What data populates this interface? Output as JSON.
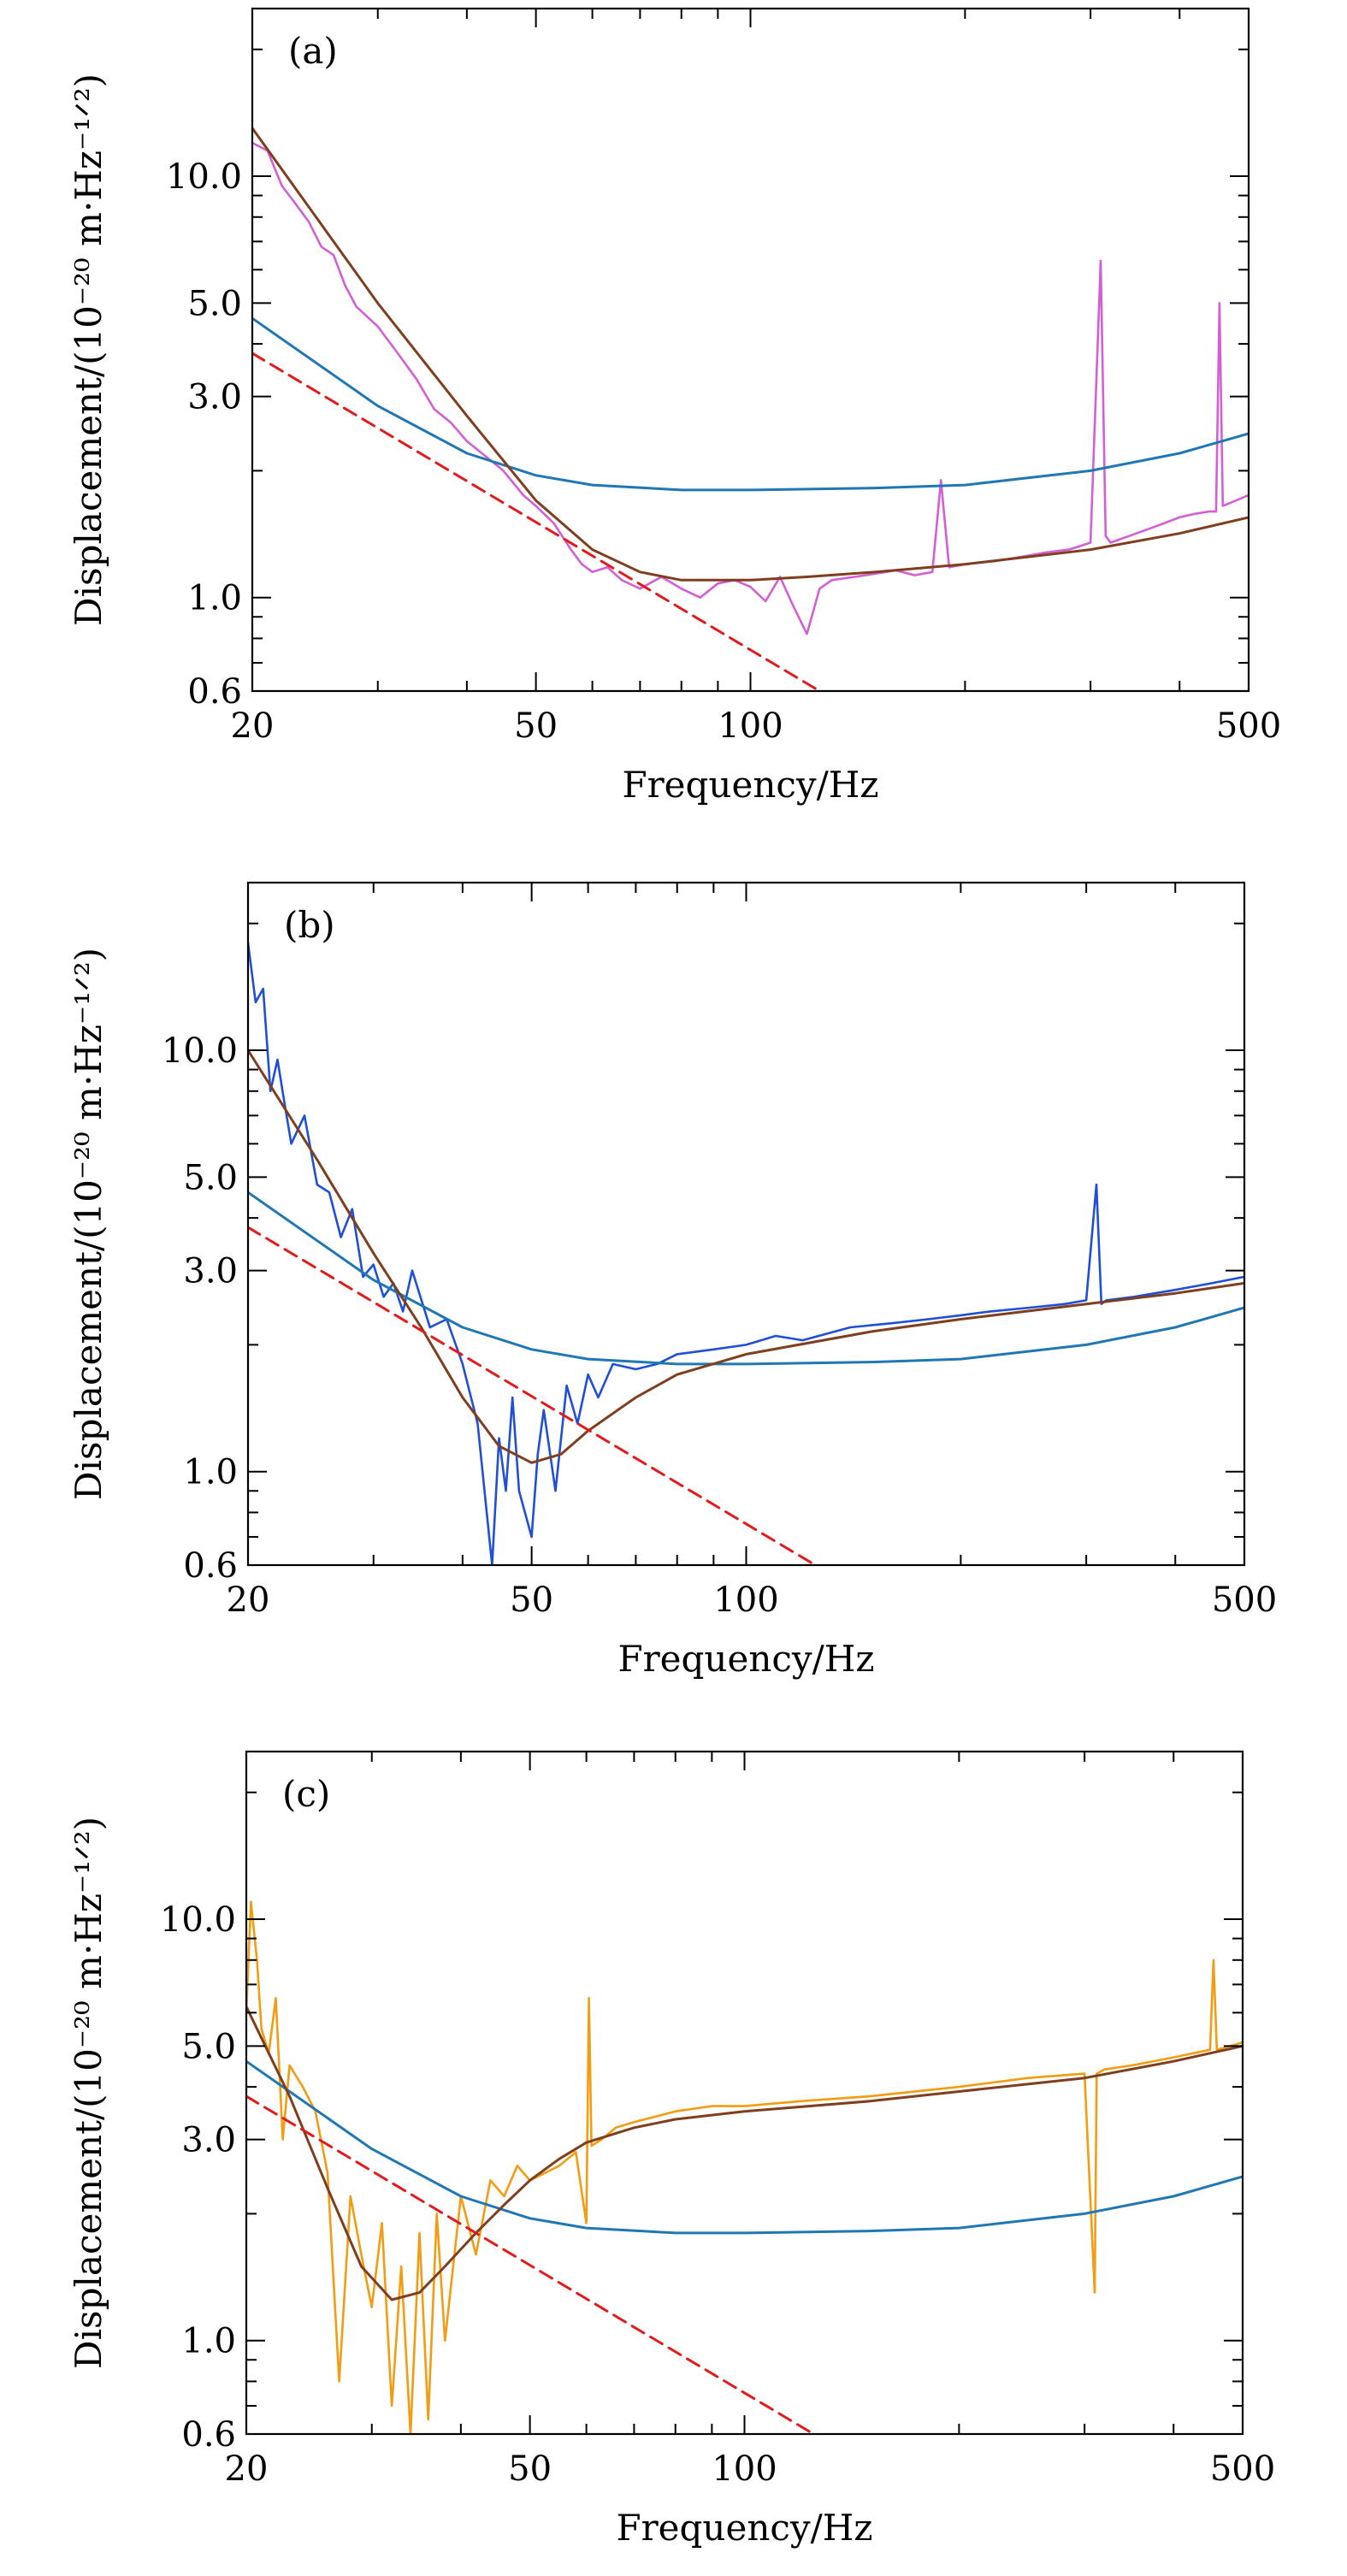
{
  "chart_data": [
    {
      "type": "line",
      "panel_label": "(a)",
      "xlabel": "Frequency/Hz",
      "ylabel": "Displacement/(10⁻²⁰ m·Hz⁻¹ᐟ²)",
      "xscale": "log",
      "yscale": "log",
      "xlim": [
        20,
        500
      ],
      "ylim": [
        0.6,
        25
      ],
      "x_ticks": [
        20,
        50,
        100,
        500
      ],
      "x_tick_labels": [
        "20",
        "50",
        "100",
        "500"
      ],
      "y_ticks": [
        0.6,
        1.0,
        3.0,
        5.0,
        10.0
      ],
      "y_tick_labels": [
        "0.6",
        "1.0",
        "3.0",
        "5.0",
        "10.0"
      ],
      "grid": false,
      "series": [
        {
          "role": "measured",
          "color": "#d45fd4",
          "x": [
            20,
            21,
            22,
            23,
            24,
            25,
            26,
            27,
            28,
            30,
            32,
            34,
            36,
            38,
            40,
            42,
            45,
            48,
            50,
            53,
            56,
            58,
            60,
            63,
            66,
            70,
            75,
            80,
            85,
            90,
            95,
            100,
            105,
            110,
            115,
            120,
            125,
            130,
            140,
            150,
            160,
            170,
            180,
            185,
            190,
            200,
            220,
            240,
            260,
            280,
            300,
            310,
            315,
            320,
            340,
            360,
            380,
            400,
            420,
            440,
            450,
            455,
            460,
            480,
            500
          ],
          "y": [
            12.0,
            11.5,
            9.5,
            8.6,
            7.8,
            6.8,
            6.5,
            5.5,
            4.9,
            4.4,
            3.8,
            3.3,
            2.8,
            2.6,
            2.35,
            2.2,
            2.0,
            1.75,
            1.65,
            1.5,
            1.3,
            1.2,
            1.15,
            1.18,
            1.1,
            1.05,
            1.12,
            1.05,
            1.0,
            1.08,
            1.1,
            1.06,
            0.98,
            1.12,
            0.95,
            0.82,
            1.05,
            1.1,
            1.12,
            1.14,
            1.16,
            1.13,
            1.15,
            1.9,
            1.18,
            1.2,
            1.22,
            1.25,
            1.28,
            1.3,
            1.35,
            6.3,
            1.4,
            1.35,
            1.4,
            1.45,
            1.5,
            1.55,
            1.58,
            1.6,
            1.6,
            5.0,
            1.65,
            1.7,
            1.75
          ]
        },
        {
          "role": "model",
          "color": "#1f77b4",
          "x": [
            20,
            30,
            40,
            50,
            60,
            80,
            100,
            150,
            200,
            300,
            400,
            500
          ],
          "y": [
            4.6,
            2.85,
            2.2,
            1.95,
            1.85,
            1.8,
            1.8,
            1.82,
            1.85,
            2.0,
            2.2,
            2.45
          ]
        },
        {
          "role": "fit",
          "color": "#7f3f1f",
          "x": [
            20,
            30,
            40,
            50,
            60,
            70,
            80,
            90,
            100,
            120,
            150,
            200,
            300,
            400,
            500
          ],
          "y": [
            13.0,
            5.0,
            2.7,
            1.7,
            1.3,
            1.15,
            1.1,
            1.1,
            1.1,
            1.12,
            1.15,
            1.2,
            1.3,
            1.42,
            1.55
          ]
        },
        {
          "role": "reference",
          "color": "#e31a1c",
          "dashed": true,
          "x": [
            20,
            125
          ],
          "y": [
            3.8,
            0.6
          ]
        }
      ]
    },
    {
      "type": "line",
      "panel_label": "(b)",
      "xlabel": "Frequency/Hz",
      "ylabel": "Displacement/(10⁻²⁰ m·Hz⁻¹ᐟ²)",
      "xscale": "log",
      "yscale": "log",
      "xlim": [
        20,
        500
      ],
      "ylim": [
        0.6,
        25
      ],
      "x_ticks": [
        20,
        50,
        100,
        500
      ],
      "x_tick_labels": [
        "20",
        "50",
        "100",
        "500"
      ],
      "y_ticks": [
        0.6,
        1.0,
        3.0,
        5.0,
        10.0
      ],
      "y_tick_labels": [
        "0.6",
        "1.0",
        "3.0",
        "5.0",
        "10.0"
      ],
      "grid": false,
      "series": [
        {
          "role": "measured",
          "color": "#1f4fd9",
          "x": [
            20,
            20.5,
            21,
            21.5,
            22,
            22.5,
            23,
            24,
            25,
            26,
            27,
            28,
            29,
            30,
            31,
            32,
            33,
            34,
            36,
            38,
            40,
            42,
            44,
            45,
            46,
            47,
            48,
            50,
            51,
            52,
            54,
            56,
            58,
            60,
            62,
            65,
            70,
            75,
            80,
            90,
            100,
            110,
            120,
            140,
            160,
            180,
            200,
            220,
            250,
            280,
            300,
            310,
            315,
            320,
            350,
            400,
            450,
            500
          ],
          "y": [
            18.0,
            13.0,
            14.0,
            8.0,
            9.5,
            7.5,
            6.0,
            7.0,
            4.8,
            4.6,
            3.6,
            4.2,
            2.9,
            3.1,
            2.6,
            2.8,
            2.4,
            3.0,
            2.2,
            2.3,
            1.8,
            1.3,
            0.6,
            1.2,
            0.9,
            1.5,
            0.9,
            0.7,
            1.1,
            1.4,
            0.9,
            1.6,
            1.3,
            1.7,
            1.5,
            1.8,
            1.75,
            1.8,
            1.9,
            1.95,
            2.0,
            2.1,
            2.05,
            2.2,
            2.25,
            2.3,
            2.35,
            2.4,
            2.45,
            2.5,
            2.55,
            4.8,
            2.5,
            2.55,
            2.6,
            2.7,
            2.8,
            2.9
          ]
        },
        {
          "role": "model",
          "color": "#1f77b4",
          "x": [
            20,
            30,
            40,
            50,
            60,
            80,
            100,
            150,
            200,
            300,
            400,
            500
          ],
          "y": [
            4.6,
            2.85,
            2.2,
            1.95,
            1.85,
            1.8,
            1.8,
            1.82,
            1.85,
            2.0,
            2.2,
            2.45
          ]
        },
        {
          "role": "fit",
          "color": "#7f3f1f",
          "x": [
            20,
            25,
            30,
            35,
            40,
            45,
            50,
            55,
            60,
            70,
            80,
            100,
            150,
            200,
            300,
            400,
            500
          ],
          "y": [
            10.0,
            5.5,
            3.3,
            2.2,
            1.5,
            1.15,
            1.05,
            1.1,
            1.25,
            1.5,
            1.7,
            1.9,
            2.15,
            2.3,
            2.5,
            2.65,
            2.8
          ]
        },
        {
          "role": "reference",
          "color": "#e31a1c",
          "dashed": true,
          "x": [
            20,
            125
          ],
          "y": [
            3.8,
            0.6
          ]
        }
      ]
    },
    {
      "type": "line",
      "panel_label": "(c)",
      "xlabel": "Frequency/Hz",
      "ylabel": "Displacement/(10⁻²⁰ m·Hz⁻¹ᐟ²)",
      "xscale": "log",
      "yscale": "log",
      "xlim": [
        20,
        500
      ],
      "ylim": [
        0.6,
        25
      ],
      "x_ticks": [
        20,
        50,
        100,
        500
      ],
      "x_tick_labels": [
        "20",
        "50",
        "100",
        "500"
      ],
      "y_ticks": [
        0.6,
        1.0,
        3.0,
        5.0,
        10.0
      ],
      "y_tick_labels": [
        "0.6",
        "1.0",
        "3.0",
        "5.0",
        "10.0"
      ],
      "grid": false,
      "series": [
        {
          "role": "measured",
          "color": "#f39c12",
          "x": [
            20,
            20.3,
            20.7,
            21,
            21.5,
            22,
            22.5,
            23,
            24,
            25,
            26,
            27,
            28,
            29,
            30,
            31,
            32,
            33,
            34,
            35,
            36,
            37,
            38,
            40,
            42,
            44,
            46,
            48,
            50,
            55,
            58,
            60,
            60.5,
            61,
            63,
            66,
            70,
            75,
            80,
            90,
            100,
            120,
            150,
            200,
            250,
            300,
            310,
            312,
            320,
            350,
            400,
            450,
            455,
            460,
            480,
            500
          ],
          "y": [
            6.0,
            11.0,
            8.0,
            5.5,
            4.8,
            6.5,
            3.0,
            4.5,
            4.0,
            3.5,
            2.5,
            0.8,
            2.2,
            1.6,
            1.2,
            1.9,
            0.7,
            1.5,
            0.6,
            1.8,
            0.65,
            2.0,
            1.0,
            2.2,
            1.6,
            2.4,
            2.2,
            2.6,
            2.4,
            2.6,
            2.8,
            1.9,
            6.5,
            2.9,
            3.0,
            3.2,
            3.3,
            3.4,
            3.5,
            3.6,
            3.6,
            3.7,
            3.8,
            4.0,
            4.2,
            4.3,
            1.3,
            4.3,
            4.4,
            4.5,
            4.7,
            4.9,
            8.0,
            4.9,
            5.0,
            5.1
          ]
        },
        {
          "role": "model",
          "color": "#1f77b4",
          "x": [
            20,
            30,
            40,
            50,
            60,
            80,
            100,
            150,
            200,
            300,
            400,
            500
          ],
          "y": [
            4.6,
            2.85,
            2.2,
            1.95,
            1.85,
            1.8,
            1.8,
            1.82,
            1.85,
            2.0,
            2.2,
            2.45
          ]
        },
        {
          "role": "fit",
          "color": "#7f3f1f",
          "x": [
            20,
            23,
            26,
            29,
            32,
            35,
            38,
            42,
            46,
            50,
            55,
            60,
            70,
            80,
            100,
            150,
            200,
            300,
            400,
            500
          ],
          "y": [
            6.2,
            3.8,
            2.3,
            1.5,
            1.25,
            1.3,
            1.5,
            1.8,
            2.1,
            2.4,
            2.7,
            2.95,
            3.2,
            3.35,
            3.5,
            3.7,
            3.9,
            4.2,
            4.6,
            5.0
          ]
        },
        {
          "role": "reference",
          "color": "#e31a1c",
          "dashed": true,
          "x": [
            20,
            125
          ],
          "y": [
            3.8,
            0.6
          ]
        }
      ]
    }
  ]
}
